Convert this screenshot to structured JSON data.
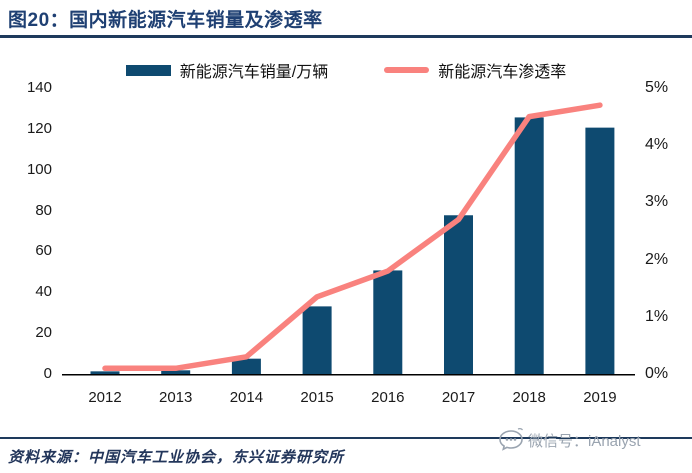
{
  "header": {
    "title": "图20：国内新能源汽车销量及渗透率"
  },
  "legend": {
    "sales_label": "新能源汽车销量/万辆",
    "penetration_label": "新能源汽车渗透率"
  },
  "colors": {
    "bar": "#0E4A70",
    "line": "#F9827E",
    "title_navy": "#1F4073",
    "rule_navy": "#1E3A5C",
    "watermark_gray": "#9AA4B0"
  },
  "chart_data": {
    "type": "bar",
    "subtype": "bar+line combo, dual axis",
    "categories": [
      "2012",
      "2013",
      "2014",
      "2015",
      "2016",
      "2017",
      "2018",
      "2019"
    ],
    "series": [
      {
        "name": "新能源汽车销量/万辆",
        "type": "bar",
        "axis": "left",
        "values": [
          1.3,
          1.8,
          7.5,
          33.1,
          50.7,
          77.7,
          125.6,
          120.6
        ],
        "color": "#0E4A70"
      },
      {
        "name": "新能源汽车渗透率",
        "type": "line",
        "axis": "right",
        "values": [
          0.1,
          0.1,
          0.3,
          1.35,
          1.8,
          2.7,
          4.5,
          4.7
        ],
        "color": "#F9827E"
      }
    ],
    "left_axis": {
      "min": 0,
      "max": 140,
      "step": 20,
      "ticks": [
        "0",
        "20",
        "40",
        "60",
        "80",
        "100",
        "120",
        "140"
      ]
    },
    "right_axis": {
      "min": 0,
      "max": 5,
      "step": 1,
      "ticks": [
        "0%",
        "1%",
        "2%",
        "3%",
        "4%",
        "5%"
      ]
    },
    "grid": false,
    "legend_position": "top",
    "title": "图20：国内新能源汽车销量及渗透率"
  },
  "footer": {
    "source": "资料来源：中国汽车工业协会，东兴证券研究所",
    "watermark": "微信号：iAnalyst"
  }
}
